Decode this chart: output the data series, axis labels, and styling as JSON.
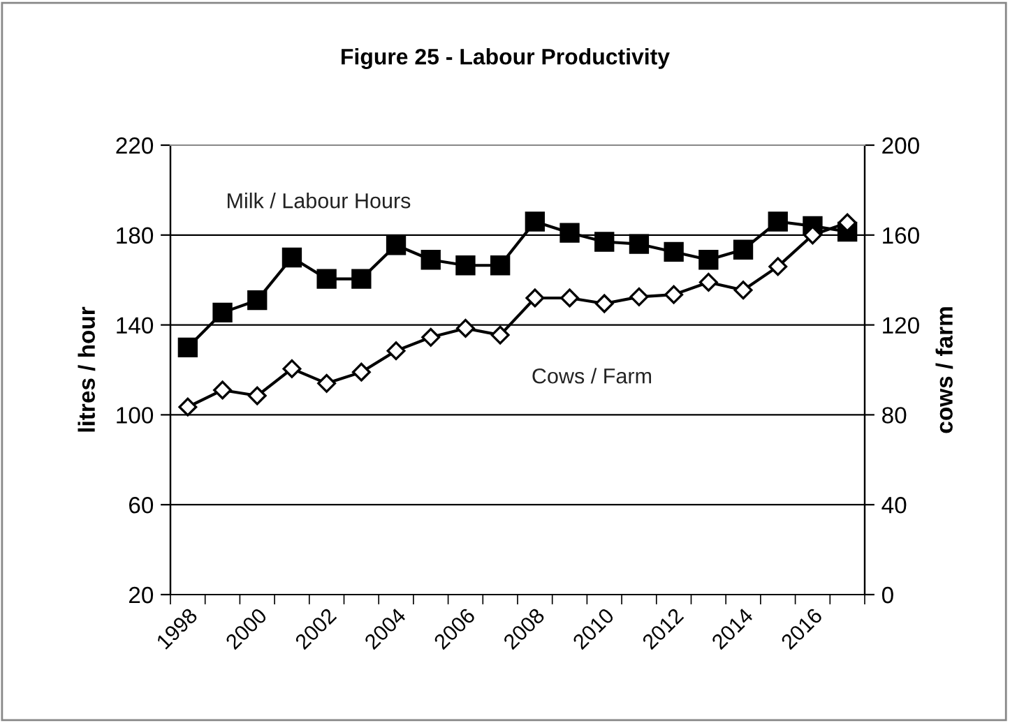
{
  "chart_data": {
    "type": "line",
    "title": "Figure 25 - Labour Productivity",
    "ylabel": "litres / hour",
    "y2label": "cows / farm",
    "categories": [
      "1998",
      null,
      "2000",
      null,
      "2002",
      null,
      "2004",
      null,
      "2006",
      null,
      "2008",
      null,
      "2010",
      null,
      "2012",
      null,
      "2014",
      null,
      "2016",
      null
    ],
    "series": [
      {
        "name": "Milk / Labour Hours",
        "color": "#000000",
        "marker": "square",
        "values": [
          130,
          145.5,
          151,
          170,
          160.5,
          160.5,
          175.5,
          169,
          166.5,
          166.5,
          186,
          181,
          177,
          176,
          172.5,
          169,
          173.5,
          186,
          184,
          181.5
        ]
      },
      {
        "name": "Cows / Farm",
        "color": "#000000",
        "marker": "diamond",
        "axis": "y2",
        "values": [
          83.5,
          91,
          88.5,
          100.5,
          94,
          99,
          108.5,
          114.5,
          118.5,
          115.5,
          132,
          132,
          129.5,
          132.5,
          133.5,
          139,
          135.5,
          146,
          160,
          165.5
        ]
      }
    ],
    "ylim": [
      20,
      220
    ],
    "yticks": [
      20,
      60,
      100,
      140,
      180,
      220
    ],
    "y2lim": [
      0,
      200
    ],
    "y2ticks": [
      0,
      40,
      80,
      120,
      160,
      200
    ],
    "grid": "y",
    "legend": false,
    "line_style": "solid"
  }
}
